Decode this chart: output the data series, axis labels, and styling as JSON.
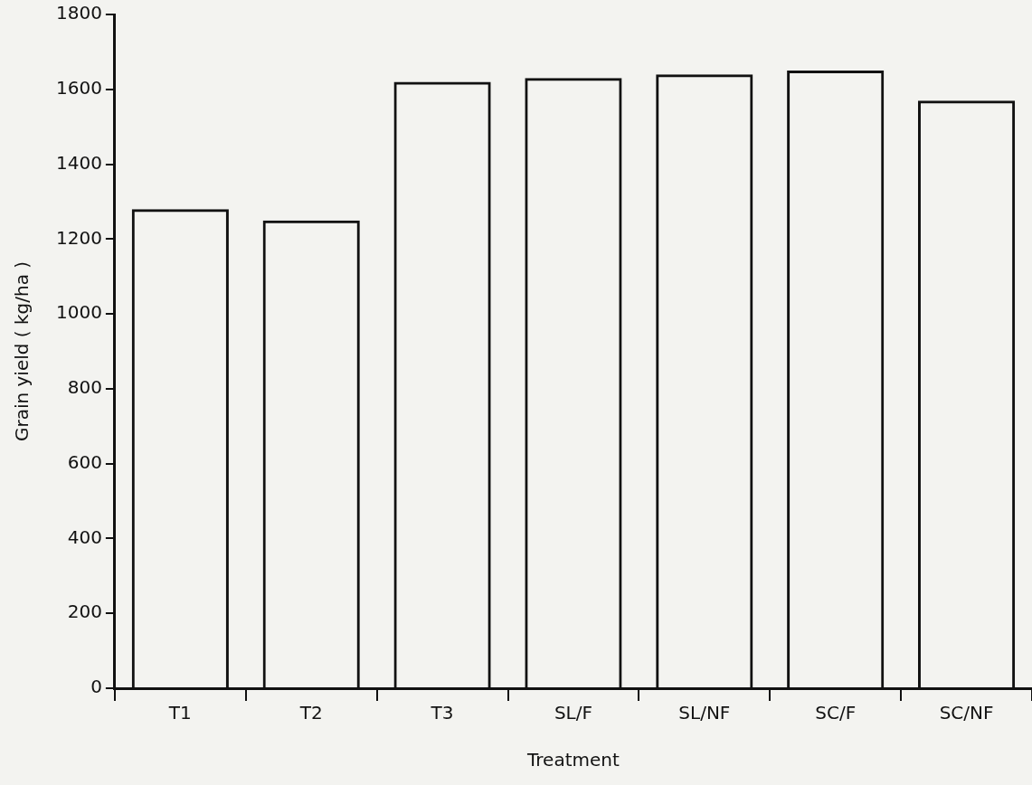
{
  "chart_data": {
    "type": "bar",
    "xlabel": "Treatment",
    "ylabel": "Grain yield ( kg/ha )",
    "categories": [
      "T1",
      "T2",
      "T3",
      "SL/F",
      "SL/NF",
      "SC/F",
      "SC/NF"
    ],
    "values": [
      1280,
      1250,
      1620,
      1630,
      1640,
      1650,
      1570
    ],
    "color": "#111111",
    "ylim": [
      0,
      1800
    ],
    "yticks": [
      0,
      200,
      400,
      600,
      800,
      1000,
      1200,
      1400,
      1600,
      1800
    ],
    "grid": false
  }
}
